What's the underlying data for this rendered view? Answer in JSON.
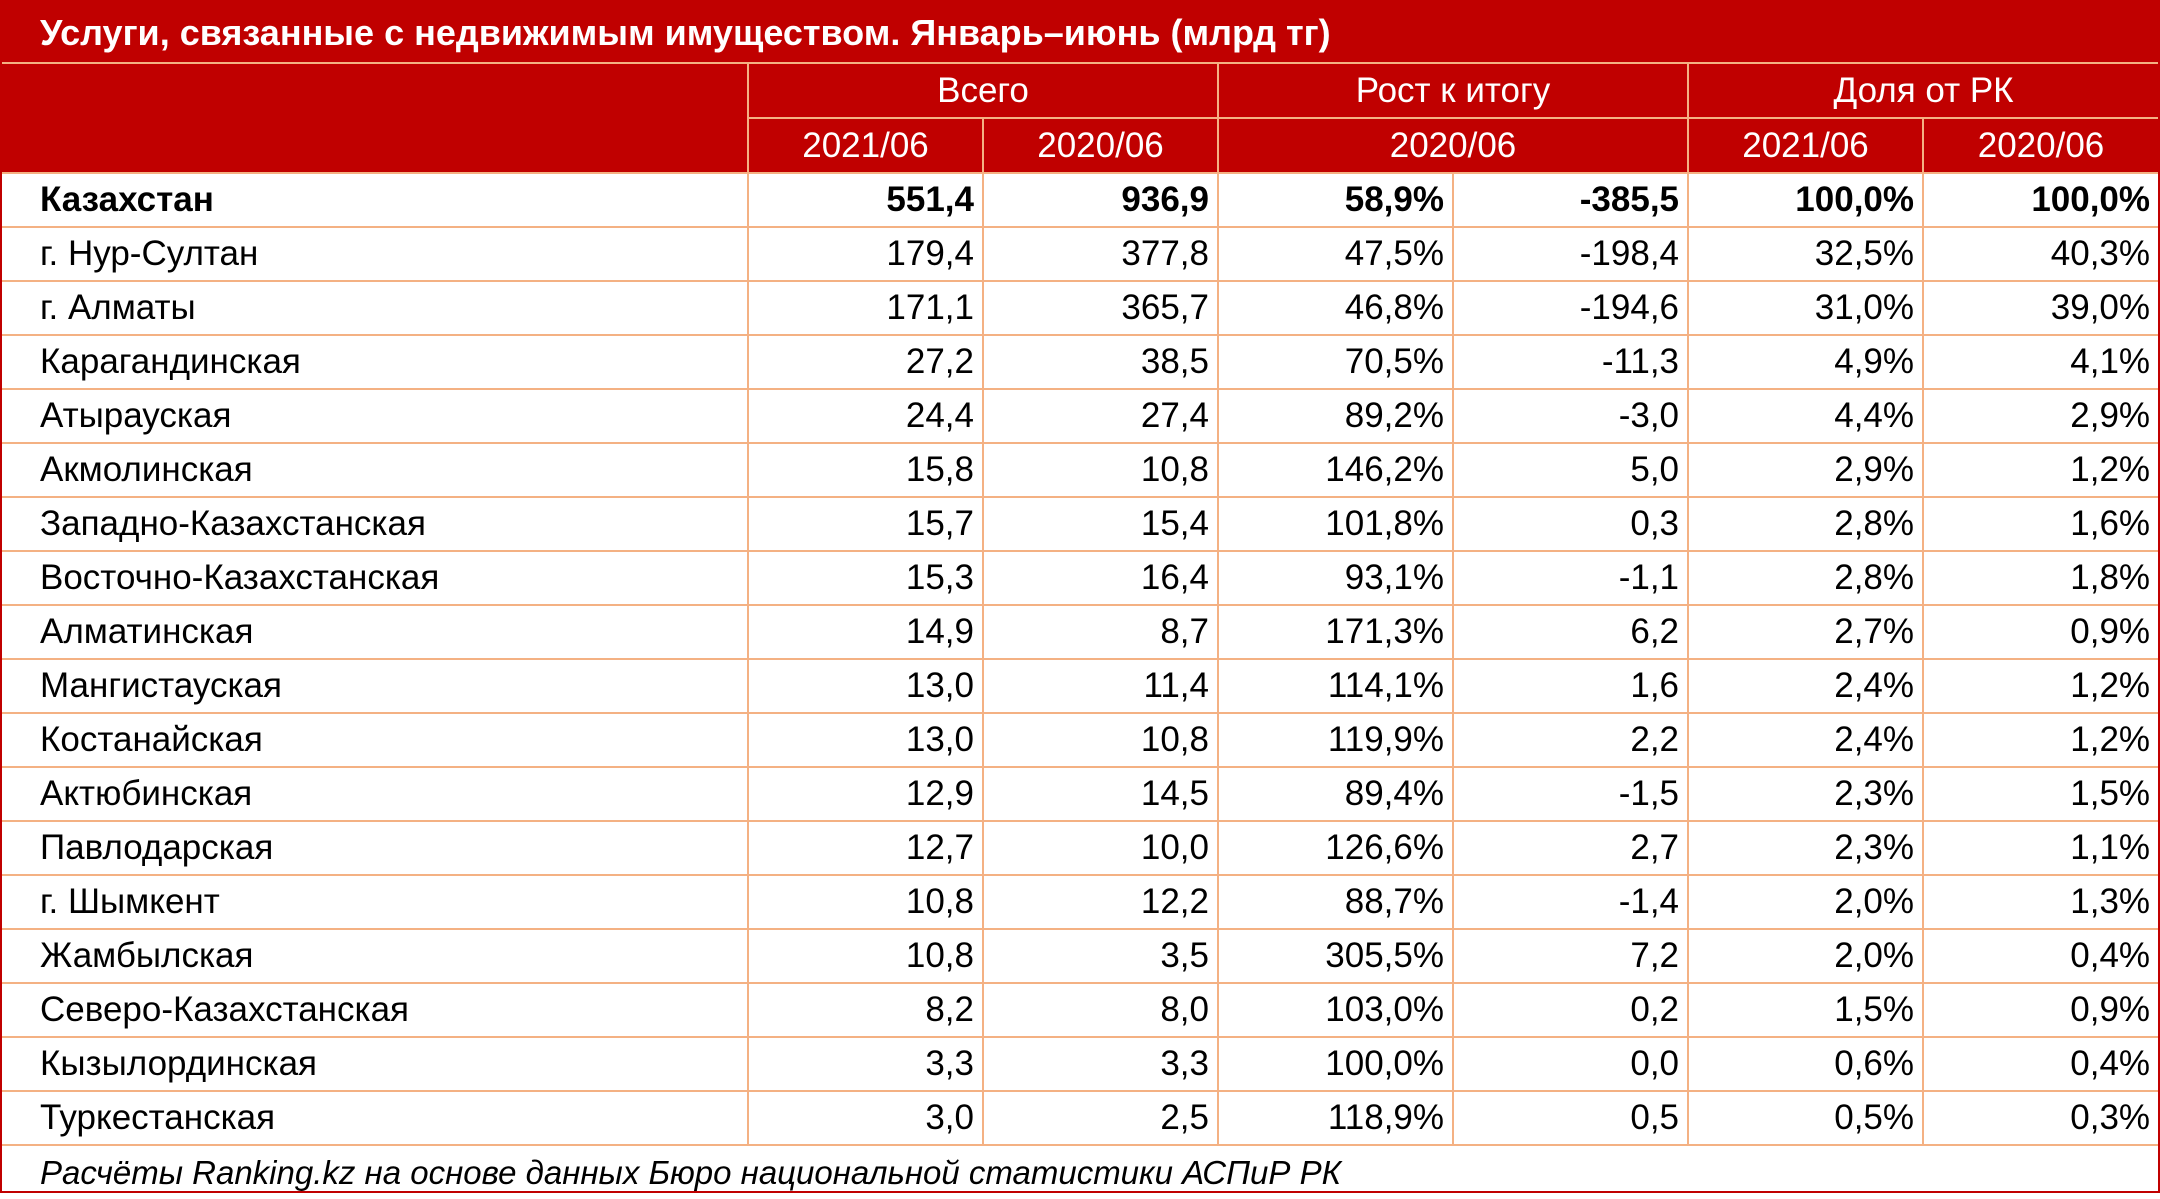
{
  "title": "Услуги, связанные с недвижимым имуществом. Январь–июнь (млрд тг)",
  "headers": {
    "groups": [
      "Всего",
      "Рост к итогу",
      "Доля от РК"
    ],
    "subheaders": [
      "2021/06",
      "2020/06",
      "2020/06",
      "2021/06",
      "2020/06"
    ]
  },
  "rows": [
    {
      "name": "Казахстан",
      "v2021": "551,4",
      "v2020": "936,9",
      "growth_pct": "58,9%",
      "growth_abs": "-385,5",
      "share2021": "100,0%",
      "share2020": "100,0%"
    },
    {
      "name": "г. Нур-Султан",
      "v2021": "179,4",
      "v2020": "377,8",
      "growth_pct": "47,5%",
      "growth_abs": "-198,4",
      "share2021": "32,5%",
      "share2020": "40,3%"
    },
    {
      "name": "г. Алматы",
      "v2021": "171,1",
      "v2020": "365,7",
      "growth_pct": "46,8%",
      "growth_abs": "-194,6",
      "share2021": "31,0%",
      "share2020": "39,0%"
    },
    {
      "name": "Карагандинская",
      "v2021": "27,2",
      "v2020": "38,5",
      "growth_pct": "70,5%",
      "growth_abs": "-11,3",
      "share2021": "4,9%",
      "share2020": "4,1%"
    },
    {
      "name": "Атырауская",
      "v2021": "24,4",
      "v2020": "27,4",
      "growth_pct": "89,2%",
      "growth_abs": "-3,0",
      "share2021": "4,4%",
      "share2020": "2,9%"
    },
    {
      "name": "Акмолинская",
      "v2021": "15,8",
      "v2020": "10,8",
      "growth_pct": "146,2%",
      "growth_abs": "5,0",
      "share2021": "2,9%",
      "share2020": "1,2%"
    },
    {
      "name": "Западно-Казахстанская",
      "v2021": "15,7",
      "v2020": "15,4",
      "growth_pct": "101,8%",
      "growth_abs": "0,3",
      "share2021": "2,8%",
      "share2020": "1,6%"
    },
    {
      "name": "Восточно-Казахстанская",
      "v2021": "15,3",
      "v2020": "16,4",
      "growth_pct": "93,1%",
      "growth_abs": "-1,1",
      "share2021": "2,8%",
      "share2020": "1,8%"
    },
    {
      "name": "Алматинская",
      "v2021": "14,9",
      "v2020": "8,7",
      "growth_pct": "171,3%",
      "growth_abs": "6,2",
      "share2021": "2,7%",
      "share2020": "0,9%"
    },
    {
      "name": "Мангистауская",
      "v2021": "13,0",
      "v2020": "11,4",
      "growth_pct": "114,1%",
      "growth_abs": "1,6",
      "share2021": "2,4%",
      "share2020": "1,2%"
    },
    {
      "name": "Костанайская",
      "v2021": "13,0",
      "v2020": "10,8",
      "growth_pct": "119,9%",
      "growth_abs": "2,2",
      "share2021": "2,4%",
      "share2020": "1,2%"
    },
    {
      "name": "Актюбинская",
      "v2021": "12,9",
      "v2020": "14,5",
      "growth_pct": "89,4%",
      "growth_abs": "-1,5",
      "share2021": "2,3%",
      "share2020": "1,5%"
    },
    {
      "name": "Павлодарская",
      "v2021": "12,7",
      "v2020": "10,0",
      "growth_pct": "126,6%",
      "growth_abs": "2,7",
      "share2021": "2,3%",
      "share2020": "1,1%"
    },
    {
      "name": "г. Шымкент",
      "v2021": "10,8",
      "v2020": "12,2",
      "growth_pct": "88,7%",
      "growth_abs": "-1,4",
      "share2021": "2,0%",
      "share2020": "1,3%"
    },
    {
      "name": "Жамбылская",
      "v2021": "10,8",
      "v2020": "3,5",
      "growth_pct": "305,5%",
      "growth_abs": "7,2",
      "share2021": "2,0%",
      "share2020": "0,4%"
    },
    {
      "name": "Северо-Казахстанская",
      "v2021": "8,2",
      "v2020": "8,0",
      "growth_pct": "103,0%",
      "growth_abs": "0,2",
      "share2021": "1,5%",
      "share2020": "0,9%"
    },
    {
      "name": "Кызылординская",
      "v2021": "3,3",
      "v2020": "3,3",
      "growth_pct": "100,0%",
      "growth_abs": "0,0",
      "share2021": "0,6%",
      "share2020": "0,4%"
    },
    {
      "name": "Туркестанская",
      "v2021": "3,0",
      "v2020": "2,5",
      "growth_pct": "118,9%",
      "growth_abs": "0,5",
      "share2021": "0,5%",
      "share2020": "0,3%"
    }
  ],
  "footnote": "Расчёты Ranking.kz на основе данных Бюро национальной статистики АСПиР РК",
  "colors": {
    "header_bg": "#c00000",
    "grid_line": "#f4b183",
    "header_text": "#ffffff"
  }
}
